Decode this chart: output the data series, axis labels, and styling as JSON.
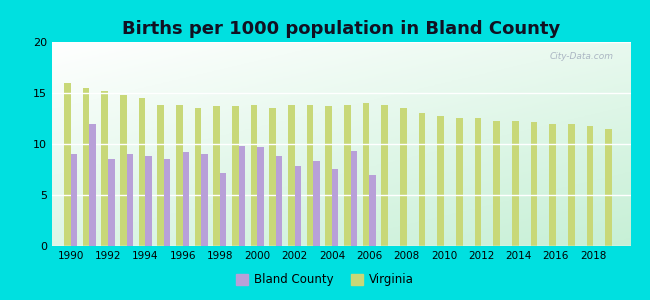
{
  "title": "Births per 1000 population in Bland County",
  "years": [
    1990,
    1991,
    1992,
    1993,
    1994,
    1995,
    1996,
    1997,
    1998,
    1999,
    2000,
    2001,
    2002,
    2003,
    2004,
    2005,
    2006,
    2007,
    2008,
    2009,
    2010,
    2011,
    2012,
    2013,
    2014,
    2015,
    2016,
    2017,
    2018,
    2019
  ],
  "bland_county": [
    9.0,
    12.0,
    8.5,
    9.0,
    8.8,
    8.5,
    9.2,
    9.0,
    7.2,
    9.8,
    9.7,
    8.8,
    7.8,
    8.3,
    7.5,
    9.3,
    7.0,
    null,
    null,
    null,
    null,
    null,
    null,
    null,
    null,
    null,
    null,
    null,
    null,
    null
  ],
  "virginia": [
    16.0,
    15.5,
    15.2,
    14.8,
    14.5,
    13.8,
    13.8,
    13.5,
    13.7,
    13.7,
    13.8,
    13.5,
    13.8,
    13.8,
    13.7,
    13.8,
    14.0,
    13.8,
    13.5,
    13.0,
    12.7,
    12.5,
    12.5,
    12.3,
    12.3,
    12.2,
    12.0,
    12.0,
    11.8,
    11.5
  ],
  "bland_color": "#b8a0d8",
  "virginia_color": "#c8d878",
  "outer_background": "#00e0e0",
  "ylim": [
    0,
    20
  ],
  "yticks": [
    0,
    5,
    10,
    15,
    20
  ],
  "xtick_years": [
    1990,
    1992,
    1994,
    1996,
    1998,
    2000,
    2002,
    2004,
    2006,
    2008,
    2010,
    2012,
    2014,
    2016,
    2018
  ],
  "title_fontsize": 13,
  "legend_labels": [
    "Bland County",
    "Virginia"
  ],
  "bar_width": 0.35,
  "xlim_left": 1989.0,
  "xlim_right": 2020.0
}
